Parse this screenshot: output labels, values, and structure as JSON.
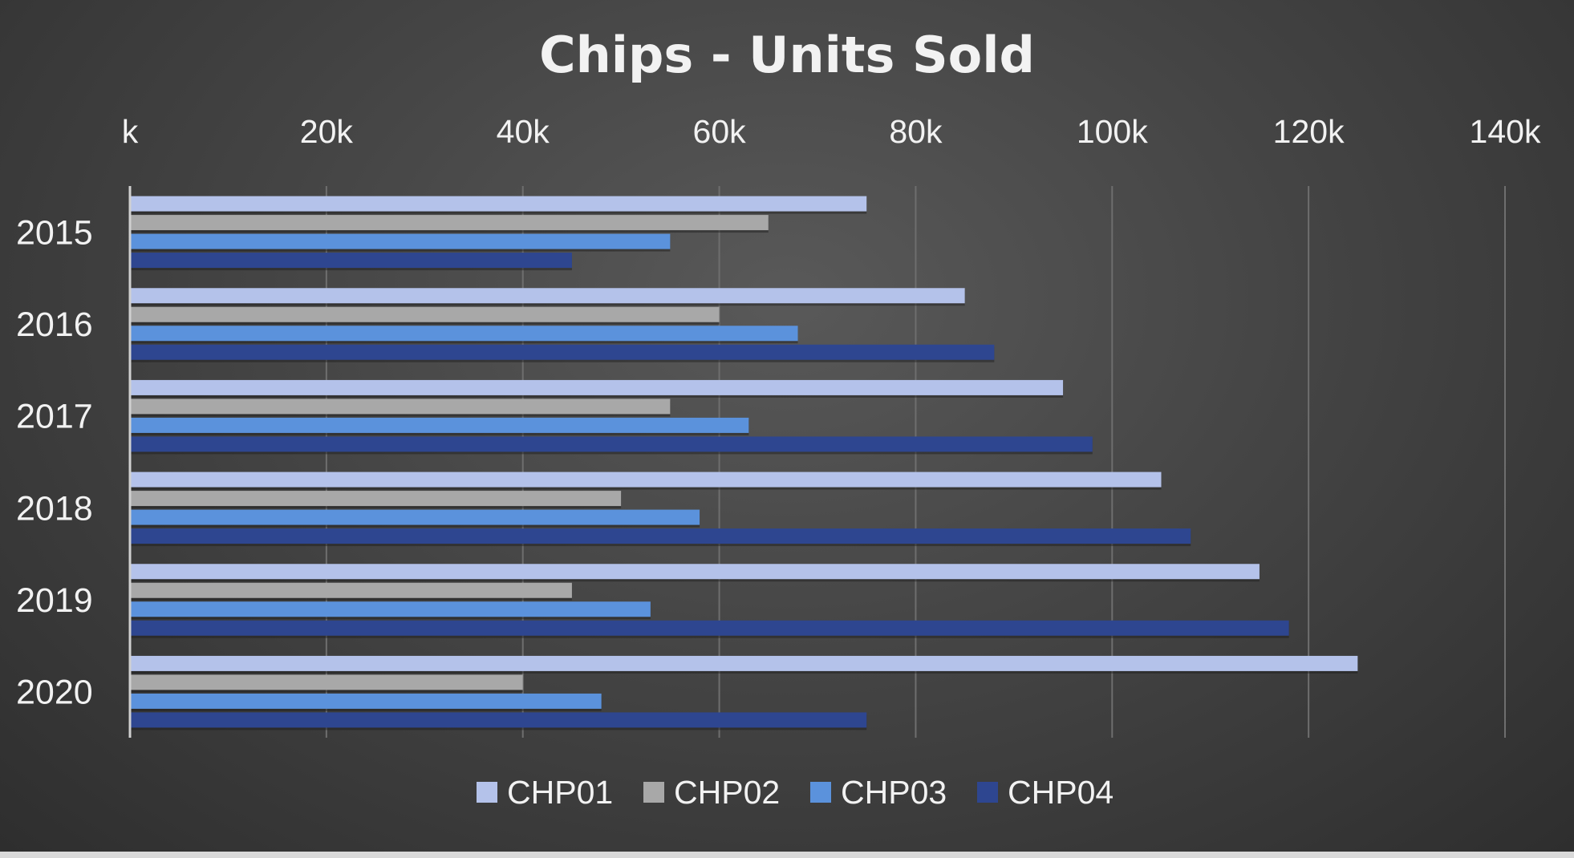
{
  "chart_data": {
    "type": "bar",
    "orientation": "horizontal",
    "title": "Chips - Units Sold",
    "categories": [
      "2015",
      "2016",
      "2017",
      "2018",
      "2019",
      "2020"
    ],
    "series": [
      {
        "name": "CHP01",
        "color": "#b4c2ea",
        "values": [
          75000,
          85000,
          95000,
          105000,
          115000,
          125000
        ]
      },
      {
        "name": "CHP02",
        "color": "#a8a8a8",
        "values": [
          65000,
          60000,
          55000,
          50000,
          45000,
          40000
        ]
      },
      {
        "name": "CHP03",
        "color": "#5b92dc",
        "values": [
          55000,
          68000,
          63000,
          58000,
          53000,
          48000
        ]
      },
      {
        "name": "CHP04",
        "color": "#2e4690",
        "values": [
          45000,
          88000,
          98000,
          108000,
          118000,
          75000
        ]
      }
    ],
    "x_ticks": [
      {
        "value": 0,
        "label": "k"
      },
      {
        "value": 20000,
        "label": "20k"
      },
      {
        "value": 40000,
        "label": "40k"
      },
      {
        "value": 60000,
        "label": "60k"
      },
      {
        "value": 80000,
        "label": "80k"
      },
      {
        "value": 100000,
        "label": "100k"
      },
      {
        "value": 120000,
        "label": "120k"
      },
      {
        "value": 140000,
        "label": "140k"
      }
    ],
    "xlim": [
      0,
      140000
    ],
    "x_axis_position": "top",
    "grid": true,
    "legend_position": "bottom",
    "colors": {
      "background": "#3f3f3f",
      "text": "#f2f2f2",
      "gridline": "#6e6e6e"
    }
  }
}
